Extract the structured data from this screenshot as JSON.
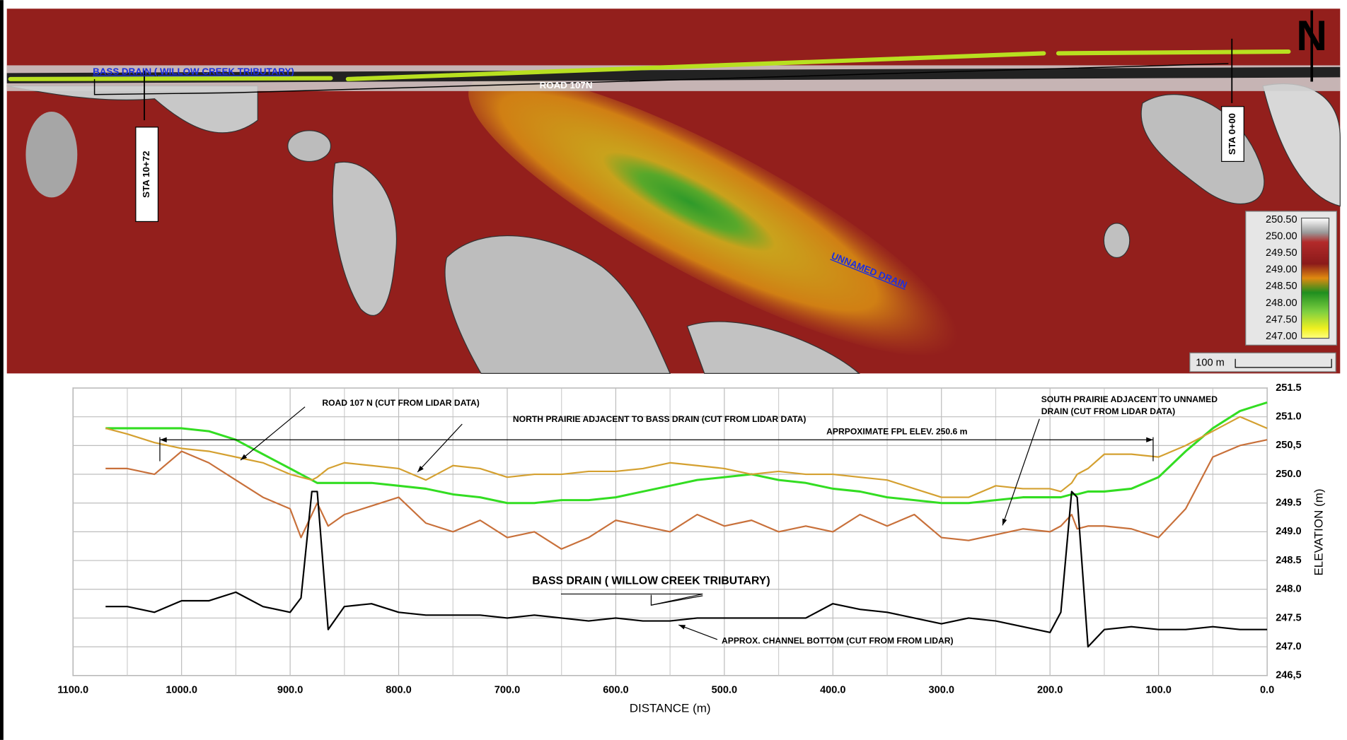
{
  "map": {
    "bass_drain": "BASS DRAIN ( WILLOW CREEK TRIBUTARY)",
    "road": "ROAD 107N",
    "sta_west": "STA 10+72",
    "sta_east": "STA 0+00",
    "unnamed_drain": "UNNAMED DRAIN",
    "legend": [
      "250.50",
      "250.00",
      "249.50",
      "249.00",
      "248.50",
      "248.00",
      "247.50",
      "247.00"
    ],
    "scale": "100 m",
    "north": "N"
  },
  "chart_data": {
    "type": "line",
    "x_label": "DISTANCE (m)",
    "y_label": "ELEVATION (m)",
    "x": [
      1070,
      1050,
      1025,
      1000,
      975,
      950,
      925,
      900,
      890,
      880,
      875,
      865,
      850,
      825,
      800,
      775,
      750,
      725,
      700,
      675,
      650,
      625,
      600,
      575,
      550,
      525,
      500,
      475,
      450,
      425,
      400,
      375,
      350,
      325,
      300,
      275,
      250,
      225,
      200,
      190,
      180,
      175,
      165,
      150,
      125,
      100,
      75,
      50,
      25,
      0
    ],
    "series": [
      {
        "color": "#33dd22",
        "values": [
          250.8,
          250.8,
          250.8,
          250.8,
          250.75,
          250.6,
          250.35,
          250.1,
          250.0,
          249.9,
          249.85,
          249.85,
          249.85,
          249.85,
          249.8,
          249.75,
          249.65,
          249.6,
          249.5,
          249.5,
          249.55,
          249.55,
          249.6,
          249.7,
          249.8,
          249.9,
          249.95,
          250.0,
          249.9,
          249.85,
          249.75,
          249.7,
          249.6,
          249.55,
          249.5,
          249.5,
          249.55,
          249.6,
          249.6,
          249.6,
          249.65,
          249.65,
          249.7,
          249.7,
          249.75,
          249.95,
          250.4,
          250.8,
          251.1,
          251.25
        ]
      },
      {
        "color": "#d4a030",
        "values": [
          250.8,
          250.7,
          250.55,
          250.45,
          250.4,
          250.3,
          250.2,
          250.0,
          249.95,
          249.9,
          249.95,
          250.1,
          250.2,
          250.15,
          250.1,
          249.9,
          250.15,
          250.1,
          249.95,
          250.0,
          250.0,
          250.05,
          250.05,
          250.1,
          250.2,
          250.15,
          250.1,
          250.0,
          250.05,
          250.0,
          250.0,
          249.95,
          249.9,
          249.75,
          249.6,
          249.6,
          249.8,
          249.75,
          249.75,
          249.7,
          249.85,
          250.0,
          250.1,
          250.35,
          250.35,
          250.3,
          250.5,
          250.75,
          251.0,
          250.8
        ]
      },
      {
        "color": "#c8703a",
        "values": [
          250.1,
          250.1,
          250.0,
          250.4,
          250.2,
          249.9,
          249.6,
          249.4,
          248.9,
          249.3,
          249.5,
          249.1,
          249.3,
          249.45,
          249.6,
          249.15,
          249.0,
          249.2,
          248.9,
          249.0,
          248.7,
          248.9,
          249.2,
          249.1,
          249.0,
          249.3,
          249.1,
          249.2,
          249.0,
          249.1,
          249.0,
          249.3,
          249.1,
          249.3,
          248.9,
          248.85,
          248.95,
          249.05,
          249.0,
          249.1,
          249.3,
          249.05,
          249.1,
          249.1,
          249.05,
          248.9,
          249.4,
          250.3,
          250.5,
          250.6
        ]
      },
      {
        "color": "#000000",
        "values": [
          247.7,
          247.7,
          247.6,
          247.8,
          247.8,
          247.95,
          247.7,
          247.6,
          247.85,
          249.7,
          249.7,
          247.3,
          247.7,
          247.75,
          247.6,
          247.55,
          247.55,
          247.55,
          247.5,
          247.55,
          247.5,
          247.45,
          247.5,
          247.45,
          247.45,
          247.5,
          247.5,
          247.5,
          247.5,
          247.5,
          247.75,
          247.65,
          247.6,
          247.5,
          247.4,
          247.5,
          247.45,
          247.35,
          247.25,
          247.6,
          249.7,
          249.6,
          247.0,
          247.3,
          247.35,
          247.3,
          247.3,
          247.35,
          247.3,
          247.3
        ]
      }
    ],
    "xlim": [
      1100,
      0
    ],
    "ylim": [
      246.5,
      251.5
    ],
    "xticks": [
      {
        "value": 1100,
        "label": "1100.0"
      },
      {
        "value": 1000,
        "label": "1000.0"
      },
      {
        "value": 900,
        "label": "900.0"
      },
      {
        "value": 800,
        "label": "800.0"
      },
      {
        "value": 700,
        "label": "700.0"
      },
      {
        "value": 600,
        "label": "600.0"
      },
      {
        "value": 500,
        "label": "500.0"
      },
      {
        "value": 400,
        "label": "400.0"
      },
      {
        "value": 300,
        "label": "300.0"
      },
      {
        "value": 200,
        "label": "200.0"
      },
      {
        "value": 100,
        "label": "100.0"
      },
      {
        "value": 0,
        "label": "0.0"
      }
    ],
    "xminorticks": [
      1050,
      950,
      850,
      750,
      650,
      550,
      450,
      350,
      250,
      150,
      50
    ],
    "yticks": [
      {
        "value": 246.5,
        "label": "246,5"
      },
      {
        "value": 247,
        "label": "247.0"
      },
      247.5,
      {
        "value": 248,
        "label": "248.0"
      },
      248.5,
      {
        "value": 249,
        "label": "249.0"
      },
      249.5,
      {
        "value": 250,
        "label": "250.0"
      },
      {
        "value": 250.5,
        "label": "250,5"
      },
      {
        "value": 251,
        "label": "251.0"
      },
      251.5
    ],
    "grid": true,
    "fpl": {
      "label": "APRPOXIMATE FPL ELEV. 250.6 m",
      "value": 250.6,
      "x": [
        1020,
        105
      ]
    },
    "annotations": {
      "road": "ROAD 107 N (CUT FROM LIDAR DATA)",
      "north_prairie": "NORTH PRAIRIE ADJACENT TO BASS DRAIN (CUT FROM LIDAR DATA)",
      "south_prairie": [
        "SOUTH PRAIRIE ADJACENT TO UNNAMED",
        "DRAIN (CUT FROM LIDAR DATA)"
      ],
      "bass_drain": "BASS DRAIN ( WILLOW CREEK TRIBUTARY)",
      "channel_bottom": "APPROX. CHANNEL BOTTOM (CUT FROM FROM LIDAR)"
    }
  }
}
